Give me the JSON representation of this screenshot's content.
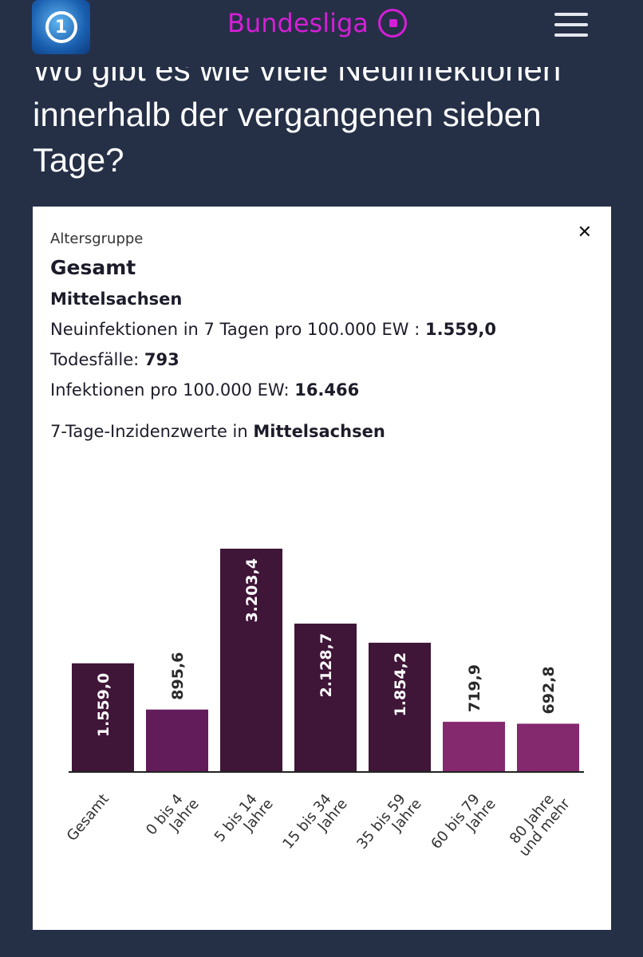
{
  "header": {
    "logo_text": "1",
    "link_label": "Bundesliga",
    "link_icon": "soccer-ball-icon",
    "menu_icon": "hamburger-icon"
  },
  "headline": "Wo gibt es wie viele Neuinfektionen innerhalb der vergangenen sieben Tage?",
  "card": {
    "group_label": "Altersgruppe",
    "group_value": "Gesamt",
    "region": "Mittelsachsen",
    "incidence_label": "Neuinfektionen in 7 Tagen pro 100.000 EW : ",
    "incidence_value": "1.559,0",
    "deaths_label": "Todesfälle: ",
    "deaths_value": "793",
    "infections_label": "Infektionen pro 100.000 EW: ",
    "infections_value": "16.466",
    "chart_title_prefix": "7-Tage-Inzidenzwerte in ",
    "chart_title_region": "Mittelsachsen"
  },
  "chart_data": {
    "type": "bar",
    "title": "7-Tage-Inzidenzwerte in Mittelsachsen",
    "categories": [
      [
        "Gesamt"
      ],
      [
        "0 bis 4",
        "Jahre"
      ],
      [
        "5 bis 14",
        "Jahre"
      ],
      [
        "15 bis 34",
        "Jahre"
      ],
      [
        "35 bis 59",
        "Jahre"
      ],
      [
        "60 bis 79",
        "Jahre"
      ],
      [
        "80 Jahre",
        "und mehr"
      ]
    ],
    "values": [
      1559.0,
      895.6,
      3203.4,
      2128.7,
      1854.2,
      719.9,
      692.8
    ],
    "labels": [
      "1.559,0",
      "895,6",
      "3.203,4",
      "2.128,7",
      "1.854,2",
      "719,9",
      "692,8"
    ],
    "colors": [
      "#3f1538",
      "#621c5a",
      "#3f1538",
      "#3f1538",
      "#3f1538",
      "#85296f",
      "#85296f"
    ],
    "ylim": [
      0,
      3203.4
    ],
    "xlabel": "",
    "ylabel": ""
  }
}
